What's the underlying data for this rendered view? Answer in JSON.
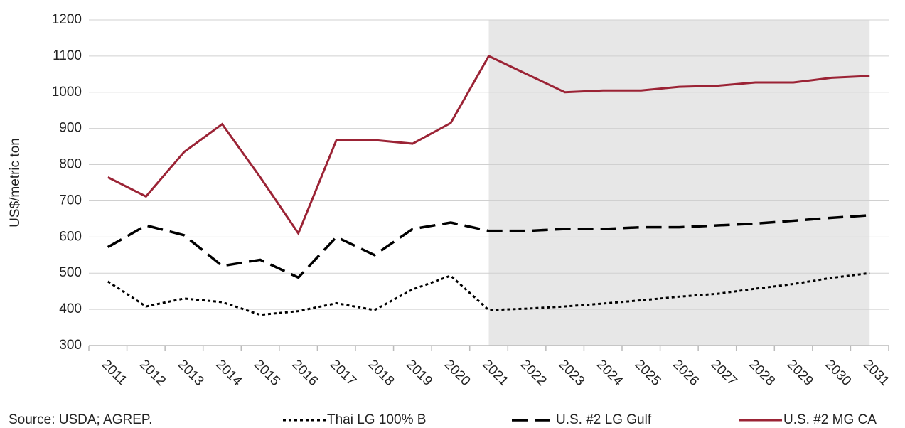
{
  "chart_data": {
    "type": "line",
    "y_label": "US$/metric ton",
    "source": "Source: USDA; AGREP.",
    "categories": [
      "2011",
      "2012",
      "2013",
      "2014",
      "2015",
      "2016",
      "2017",
      "2018",
      "2019",
      "2020",
      "2021",
      "2022",
      "2023",
      "2024",
      "2025",
      "2026",
      "2027",
      "2028",
      "2029",
      "2030",
      "2031"
    ],
    "series": [
      {
        "name": "Thai LG 100% B",
        "color": "#000000",
        "dash": "dotted",
        "values": [
          477,
          408,
          430,
          420,
          385,
          395,
          417,
          398,
          455,
          493,
          398,
          402,
          408,
          416,
          425,
          435,
          443,
          457,
          470,
          487,
          500
        ]
      },
      {
        "name": "U.S. #2 LG Gulf",
        "color": "#000000",
        "dash": "dashed",
        "values": [
          572,
          632,
          605,
          520,
          537,
          488,
          600,
          550,
          622,
          640,
          617,
          617,
          622,
          622,
          627,
          627,
          632,
          637,
          645,
          653,
          660
        ]
      },
      {
        "name": "U.S. #2 MG CA",
        "color": "#9b2335",
        "dash": "solid",
        "values": [
          765,
          712,
          835,
          912,
          765,
          610,
          868,
          868,
          858,
          915,
          1100,
          1050,
          1000,
          1005,
          1005,
          1015,
          1018,
          1027,
          1027,
          1040,
          1045
        ]
      }
    ],
    "ylim": [
      300,
      1200
    ],
    "yticks": [
      300,
      400,
      500,
      600,
      700,
      800,
      900,
      1000,
      1100,
      1200
    ],
    "grid": true,
    "shade": {
      "from": "2021",
      "to": "2031",
      "color": "#e7e7e7"
    },
    "legend": "bottom"
  }
}
